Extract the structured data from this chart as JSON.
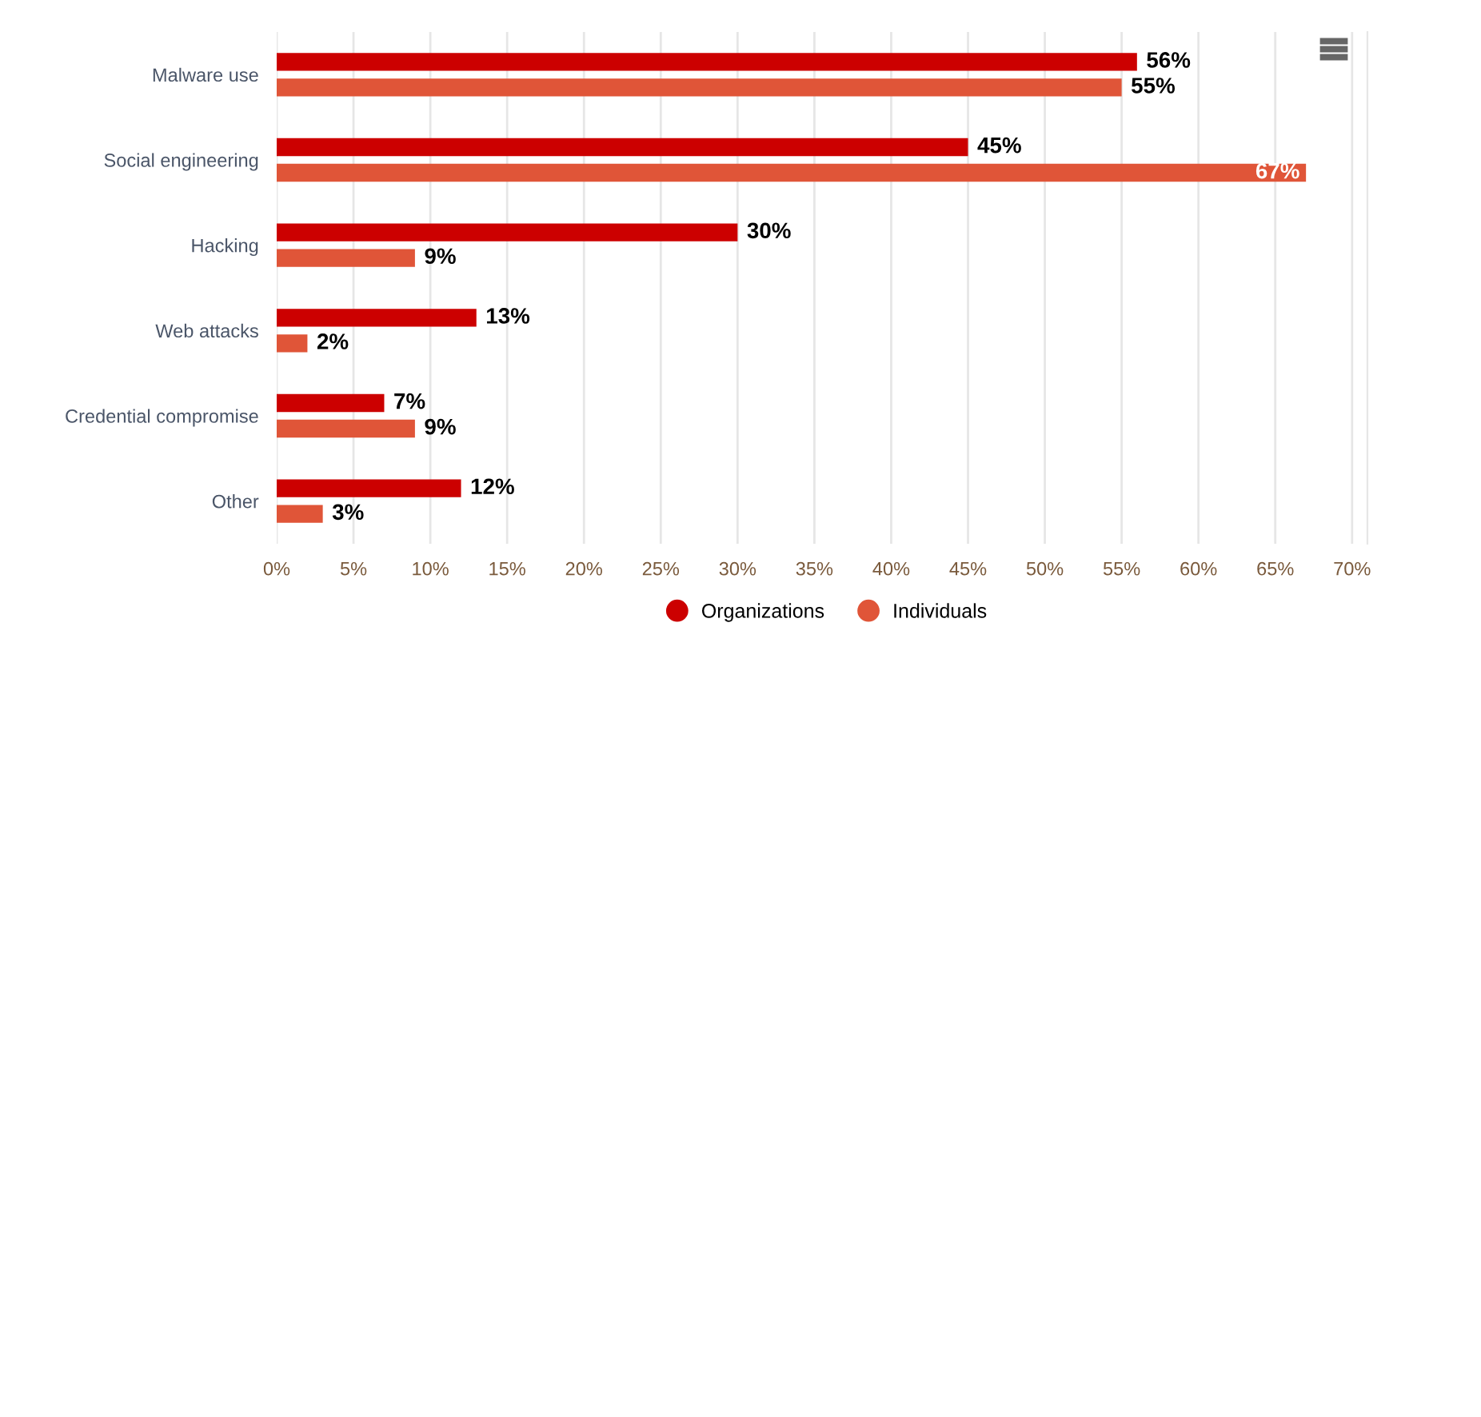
{
  "chart_data": {
    "type": "bar",
    "orientation": "horizontal",
    "categories": [
      "Malware use",
      "Social engineering",
      "Hacking",
      "Web attacks",
      "Credential compromise",
      "Other"
    ],
    "series": [
      {
        "name": "Organizations",
        "color": "#cc0000",
        "values": [
          56,
          45,
          30,
          13,
          7,
          12
        ],
        "value_labels": [
          "56%",
          "45%",
          "30%",
          "13%",
          "7%",
          "12%"
        ]
      },
      {
        "name": "Individuals",
        "color": "#e05538",
        "values": [
          55,
          67,
          9,
          2,
          9,
          3
        ],
        "value_labels": [
          "55%",
          "67%",
          "9%",
          "2%",
          "9%",
          "3%"
        ]
      }
    ],
    "xlim": [
      0,
      71
    ],
    "xticks": [
      {
        "value": 0,
        "label": "0%"
      },
      {
        "value": 5,
        "label": "5%"
      },
      {
        "value": 10,
        "label": "10%"
      },
      {
        "value": 15,
        "label": "15%"
      },
      {
        "value": 20,
        "label": "20%"
      },
      {
        "value": 25,
        "label": "25%"
      },
      {
        "value": 30,
        "label": "30%"
      },
      {
        "value": 35,
        "label": "35%"
      },
      {
        "value": 40,
        "label": "40%"
      },
      {
        "value": 45,
        "label": "45%"
      },
      {
        "value": 50,
        "label": "50%"
      },
      {
        "value": 55,
        "label": "55%"
      },
      {
        "value": 60,
        "label": "60%"
      },
      {
        "value": 65,
        "label": "65%"
      },
      {
        "value": 70,
        "label": "70%"
      }
    ],
    "grid": "x",
    "legend": "bottom",
    "marker": "circle"
  }
}
